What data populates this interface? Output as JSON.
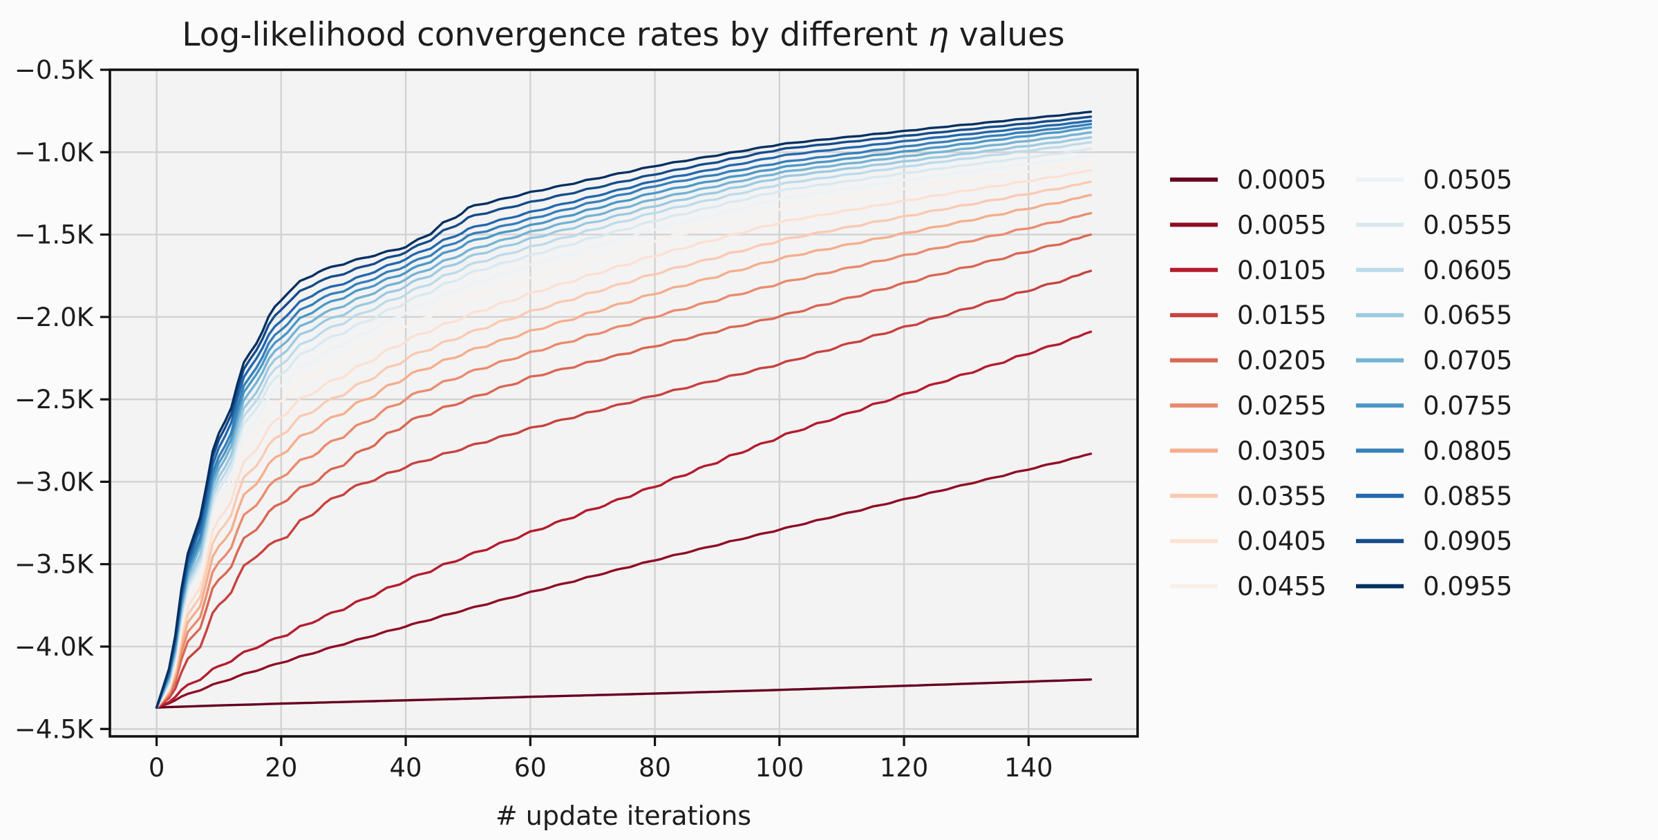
{
  "chart_data": {
    "type": "line",
    "title": "Log-likelihood convergence rates by different η values",
    "title_parts": {
      "pre": "Log-likelihood convergence rates by different ",
      "eta": "η",
      "post": " values"
    },
    "xlabel": "# update iterations",
    "ylabel": "",
    "x_ticks": [
      0,
      20,
      40,
      60,
      80,
      100,
      120,
      140
    ],
    "y_ticks": [
      {
        "v": -0.5,
        "label": "−0.5K"
      },
      {
        "v": -1.0,
        "label": "−1.0K"
      },
      {
        "v": -1.5,
        "label": "−1.5K"
      },
      {
        "v": -2.0,
        "label": "−2.0K"
      },
      {
        "v": -2.5,
        "label": "−2.5K"
      },
      {
        "v": -3.0,
        "label": "−3.0K"
      },
      {
        "v": -3.5,
        "label": "−3.5K"
      },
      {
        "v": -4.0,
        "label": "−4.0K"
      },
      {
        "v": -4.5,
        "label": "−4.5K"
      }
    ],
    "x_range": [
      -7.5,
      157.5
    ],
    "y_range": [
      -4.545,
      -0.5
    ],
    "y_unit": "K (thousands), log-likelihood",
    "x_max_iteration": 150,
    "start_value_K": -4.37,
    "grid": true,
    "legend_position": "right, two columns, no frame",
    "anchor_t": [
      0,
      3,
      6,
      10,
      15,
      20,
      25,
      30,
      40,
      50,
      60,
      80,
      100,
      125,
      150
    ],
    "style": {
      "figure_background": "#fbfbfb",
      "axes_background": "#f3f3f4",
      "grid_color": "#d2d2d2",
      "spine_color": "#111111",
      "text_color": "#1d1d1d",
      "line_width": 3.4
    },
    "series": [
      {
        "label": "0.0005",
        "color": "#67001f",
        "wobble": 0.05,
        "values": [
          -4.37,
          -4.366,
          -4.362,
          -4.357,
          -4.352,
          -4.346,
          -4.341,
          -4.336,
          -4.326,
          -4.316,
          -4.305,
          -4.285,
          -4.263,
          -4.232,
          -4.2
        ]
      },
      {
        "label": "0.0055",
        "color": "#8f0d25",
        "wobble": 0.3,
        "values": [
          -4.37,
          -4.315,
          -4.27,
          -4.215,
          -4.152,
          -4.093,
          -4.036,
          -3.98,
          -3.873,
          -3.768,
          -3.667,
          -3.472,
          -3.287,
          -3.058,
          -2.83
        ]
      },
      {
        "label": "0.0105",
        "color": "#b41c2d",
        "wobble": 0.45,
        "values": [
          -4.37,
          -4.28,
          -4.2,
          -4.11,
          -4.01,
          -3.93,
          -3.84,
          -3.76,
          -3.59,
          -3.44,
          -3.3,
          -3.02,
          -2.72,
          -2.4,
          -2.09
        ]
      },
      {
        "label": "0.0155",
        "color": "#c7423f",
        "wobble": 0.5,
        "values": [
          -4.37,
          -4.2,
          -3.99,
          -3.72,
          -3.45,
          -3.33,
          -3.17,
          -3.05,
          -2.9,
          -2.78,
          -2.67,
          -2.47,
          -2.28,
          -2.0,
          -1.72
        ]
      },
      {
        "label": "0.0205",
        "color": "#d96753",
        "wobble": 0.55,
        "values": [
          -4.37,
          -4.13,
          -3.86,
          -3.56,
          -3.28,
          -3.1,
          -2.99,
          -2.87,
          -2.63,
          -2.49,
          -2.36,
          -2.17,
          -1.99,
          -1.74,
          -1.5
        ]
      },
      {
        "label": "0.0255",
        "color": "#e98c6e",
        "wobble": 0.55,
        "values": [
          -4.37,
          -4.09,
          -3.79,
          -3.45,
          -3.13,
          -2.94,
          -2.82,
          -2.7,
          -2.48,
          -2.33,
          -2.21,
          -1.99,
          -1.79,
          -1.58,
          -1.37
        ]
      },
      {
        "label": "0.0305",
        "color": "#f5ae8d",
        "wobble": 0.55,
        "values": [
          -4.37,
          -4.05,
          -3.72,
          -3.35,
          -3.0,
          -2.8,
          -2.67,
          -2.56,
          -2.35,
          -2.2,
          -2.08,
          -1.85,
          -1.64,
          -1.45,
          -1.26
        ]
      },
      {
        "label": "0.0355",
        "color": "#facab1",
        "wobble": 0.55,
        "values": [
          -4.37,
          -4.02,
          -3.66,
          -3.26,
          -2.89,
          -2.68,
          -2.55,
          -2.45,
          -2.24,
          -2.09,
          -1.96,
          -1.73,
          -1.53,
          -1.35,
          -1.18
        ]
      },
      {
        "label": "0.0405",
        "color": "#fce1d1",
        "wobble": 0.55,
        "values": [
          -4.37,
          -3.99,
          -3.6,
          -3.18,
          -2.79,
          -2.57,
          -2.44,
          -2.34,
          -2.13,
          -1.98,
          -1.85,
          -1.62,
          -1.42,
          -1.26,
          -1.11
        ]
      },
      {
        "label": "0.0455",
        "color": "#f9f0ea",
        "wobble": 0.55,
        "values": [
          -4.37,
          -3.96,
          -3.55,
          -3.11,
          -2.7,
          -2.47,
          -2.34,
          -2.24,
          -2.04,
          -1.88,
          -1.76,
          -1.53,
          -1.34,
          -1.19,
          -1.06
        ]
      },
      {
        "label": "0.0505",
        "color": "#edf2f5",
        "wobble": 0.5,
        "values": [
          -4.37,
          -3.94,
          -3.51,
          -3.05,
          -2.62,
          -2.38,
          -2.25,
          -2.15,
          -1.96,
          -1.8,
          -1.68,
          -1.46,
          -1.28,
          -1.14,
          -1.02
        ]
      },
      {
        "label": "0.0555",
        "color": "#d9e9f1",
        "wobble": 0.5,
        "values": [
          -4.37,
          -3.92,
          -3.47,
          -3.0,
          -2.55,
          -2.31,
          -2.17,
          -2.08,
          -1.9,
          -1.73,
          -1.62,
          -1.41,
          -1.23,
          -1.1,
          -0.98
        ]
      },
      {
        "label": "0.0605",
        "color": "#bddbea",
        "wobble": 0.5,
        "values": [
          -4.37,
          -3.9,
          -3.44,
          -2.96,
          -2.5,
          -2.25,
          -2.11,
          -2.02,
          -1.85,
          -1.68,
          -1.57,
          -1.36,
          -1.19,
          -1.06,
          -0.94
        ]
      },
      {
        "label": "0.0655",
        "color": "#9ccae1",
        "wobble": 0.5,
        "values": [
          -4.37,
          -3.88,
          -3.41,
          -2.92,
          -2.45,
          -2.19,
          -2.05,
          -1.97,
          -1.8,
          -1.63,
          -1.52,
          -1.32,
          -1.15,
          -1.03,
          -0.91
        ]
      },
      {
        "label": "0.0705",
        "color": "#75b3d4",
        "wobble": 0.45,
        "values": [
          -4.37,
          -3.87,
          -3.38,
          -2.88,
          -2.4,
          -2.14,
          -2.0,
          -1.92,
          -1.76,
          -1.59,
          -1.48,
          -1.28,
          -1.12,
          -1.0,
          -0.88
        ]
      },
      {
        "label": "0.0755",
        "color": "#4b98c6",
        "wobble": 0.45,
        "values": [
          -4.37,
          -3.85,
          -3.35,
          -2.84,
          -2.35,
          -2.09,
          -1.95,
          -1.87,
          -1.72,
          -1.54,
          -1.44,
          -1.24,
          -1.09,
          -0.97,
          -0.85
        ]
      },
      {
        "label": "0.0805",
        "color": "#3580b9",
        "wobble": 0.45,
        "values": [
          -4.37,
          -3.83,
          -3.32,
          -2.8,
          -2.31,
          -2.04,
          -1.9,
          -1.83,
          -1.68,
          -1.5,
          -1.4,
          -1.2,
          -1.06,
          -0.94,
          -0.83
        ]
      },
      {
        "label": "0.0855",
        "color": "#2368ad",
        "wobble": 0.4,
        "values": [
          -4.37,
          -3.82,
          -3.29,
          -2.75,
          -2.26,
          -1.99,
          -1.85,
          -1.79,
          -1.64,
          -1.46,
          -1.36,
          -1.17,
          -1.02,
          -0.91,
          -0.81
        ]
      },
      {
        "label": "0.0905",
        "color": "#144c89",
        "wobble": 0.4,
        "values": [
          -4.37,
          -3.8,
          -3.25,
          -2.7,
          -2.21,
          -1.92,
          -1.79,
          -1.73,
          -1.6,
          -1.39,
          -1.3,
          -1.13,
          -0.98,
          -0.88,
          -0.785
        ]
      },
      {
        "label": "0.0955",
        "color": "#053061",
        "wobble": 0.4,
        "values": [
          -4.37,
          -3.78,
          -3.22,
          -2.66,
          -2.17,
          -1.86,
          -1.73,
          -1.67,
          -1.57,
          -1.33,
          -1.24,
          -1.08,
          -0.95,
          -0.85,
          -0.755
        ]
      }
    ]
  }
}
